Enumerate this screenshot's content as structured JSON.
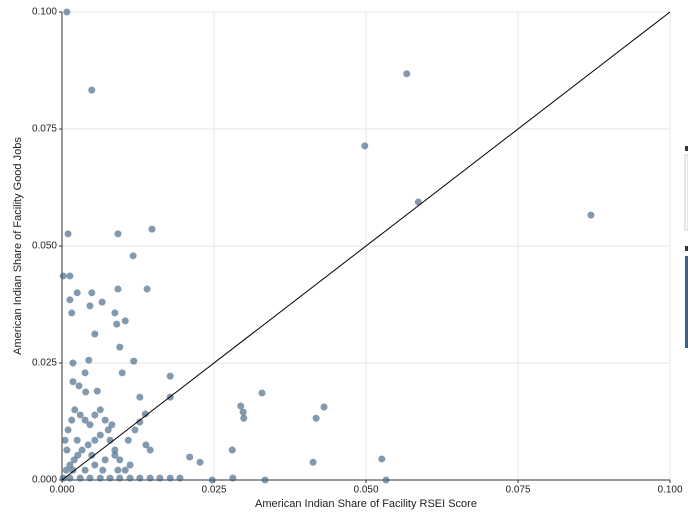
{
  "chart_data": {
    "type": "scatter",
    "xlabel": "American Indian Share of Facility RSEI Score",
    "ylabel": "American Indian Share of Facility Good Jobs",
    "xlim": [
      0,
      0.1
    ],
    "ylim": [
      0,
      0.1
    ],
    "xticks": [
      {
        "value": 0,
        "label": "0.000"
      },
      {
        "value": 0.025,
        "label": "0.025"
      },
      {
        "value": 0.05,
        "label": "0.050"
      },
      {
        "value": 0.075,
        "label": "0.075"
      },
      {
        "value": 0.1,
        "label": "0.100"
      }
    ],
    "yticks": [
      {
        "value": 0,
        "label": "0.000"
      },
      {
        "value": 0.025,
        "label": "0.025"
      },
      {
        "value": 0.05,
        "label": "0.050"
      },
      {
        "value": 0.075,
        "label": "0.075"
      },
      {
        "value": 0.1,
        "label": "0.100"
      }
    ],
    "grid": true,
    "color": "#3f6283",
    "x": [
      0.0008,
      0.0049,
      0.0567,
      0.0498,
      0.0586,
      0.087,
      0.001,
      0.0092,
      0.0148,
      0.0117,
      0.0002,
      0.0013,
      0.014,
      0.0092,
      0.0025,
      0.0049,
      0.0013,
      0.0066,
      0.0046,
      0.0016,
      0.0087,
      0.0104,
      0.009,
      0.0054,
      0.0095,
      0.0044,
      0.0018,
      0.0118,
      0.0099,
      0.0038,
      0.0178,
      0.0018,
      0.0028,
      0.0039,
      0.0058,
      0.0128,
      0.0178,
      0.0329,
      0.0294,
      0.0298,
      0.0299,
      0.0431,
      0.0418,
      0.0137,
      0.0128,
      0.0138,
      0.0145,
      0.028,
      0.021,
      0.0227,
      0.0281,
      0.0334,
      0.0413,
      0.0526,
      0.0533,
      0.0247,
      0.0007,
      0.0013,
      0.002,
      0.0026,
      0.0033,
      0.0043,
      0.0054,
      0.0063,
      0.0076,
      0.0082,
      0.0005,
      0.001,
      0.0016,
      0.0021,
      0.003,
      0.0038,
      0.0046,
      0.0054,
      0.0063,
      0.0071,
      0.0079,
      0.0087,
      0.0095,
      0.0104,
      0.0112,
      0.0002,
      0.0013,
      0.003,
      0.0046,
      0.0063,
      0.0079,
      0.0095,
      0.0112,
      0.0128,
      0.0145,
      0.0161,
      0.0178,
      0.0194,
      0.0038,
      0.0054,
      0.0071,
      0.0087,
      0.0008,
      0.0018,
      0.0025,
      0.0049,
      0.0067,
      0.0092,
      0.0109,
      0.012
    ],
    "values": [
      0.1,
      0.0833,
      0.0868,
      0.0714,
      0.0594,
      0.0566,
      0.0526,
      0.0526,
      0.0536,
      0.0479,
      0.0436,
      0.0436,
      0.0408,
      0.0408,
      0.04,
      0.04,
      0.0385,
      0.038,
      0.0372,
      0.0357,
      0.0357,
      0.034,
      0.0333,
      0.0312,
      0.0284,
      0.0256,
      0.025,
      0.0254,
      0.0229,
      0.0229,
      0.0222,
      0.021,
      0.0201,
      0.0188,
      0.019,
      0.0177,
      0.0177,
      0.0186,
      0.0158,
      0.0145,
      0.0132,
      0.0156,
      0.0132,
      0.0141,
      0.0124,
      0.0075,
      0.0064,
      0.0064,
      0.0049,
      0.0038,
      0.0004,
      0,
      0.0038,
      0.0045,
      0,
      0,
      0.0021,
      0.0032,
      0.0043,
      0.0053,
      0.0064,
      0.0075,
      0.0085,
      0.0096,
      0.0107,
      0.0118,
      0.0085,
      0.0107,
      0.0128,
      0.015,
      0.0139,
      0.0128,
      0.0118,
      0.0139,
      0.015,
      0.0128,
      0.0085,
      0.0064,
      0.0043,
      0.0021,
      0.0032,
      0.0004,
      0.0004,
      0.0004,
      0.0004,
      0.0004,
      0.0004,
      0.0004,
      0.0004,
      0.0004,
      0.0004,
      0.0004,
      0.0004,
      0.0004,
      0.0021,
      0.0032,
      0.0043,
      0.0053,
      0.0064,
      0.0021,
      0.0085,
      0.0053,
      0.0021,
      0.0021,
      0.0085,
      0.0107
    ]
  }
}
